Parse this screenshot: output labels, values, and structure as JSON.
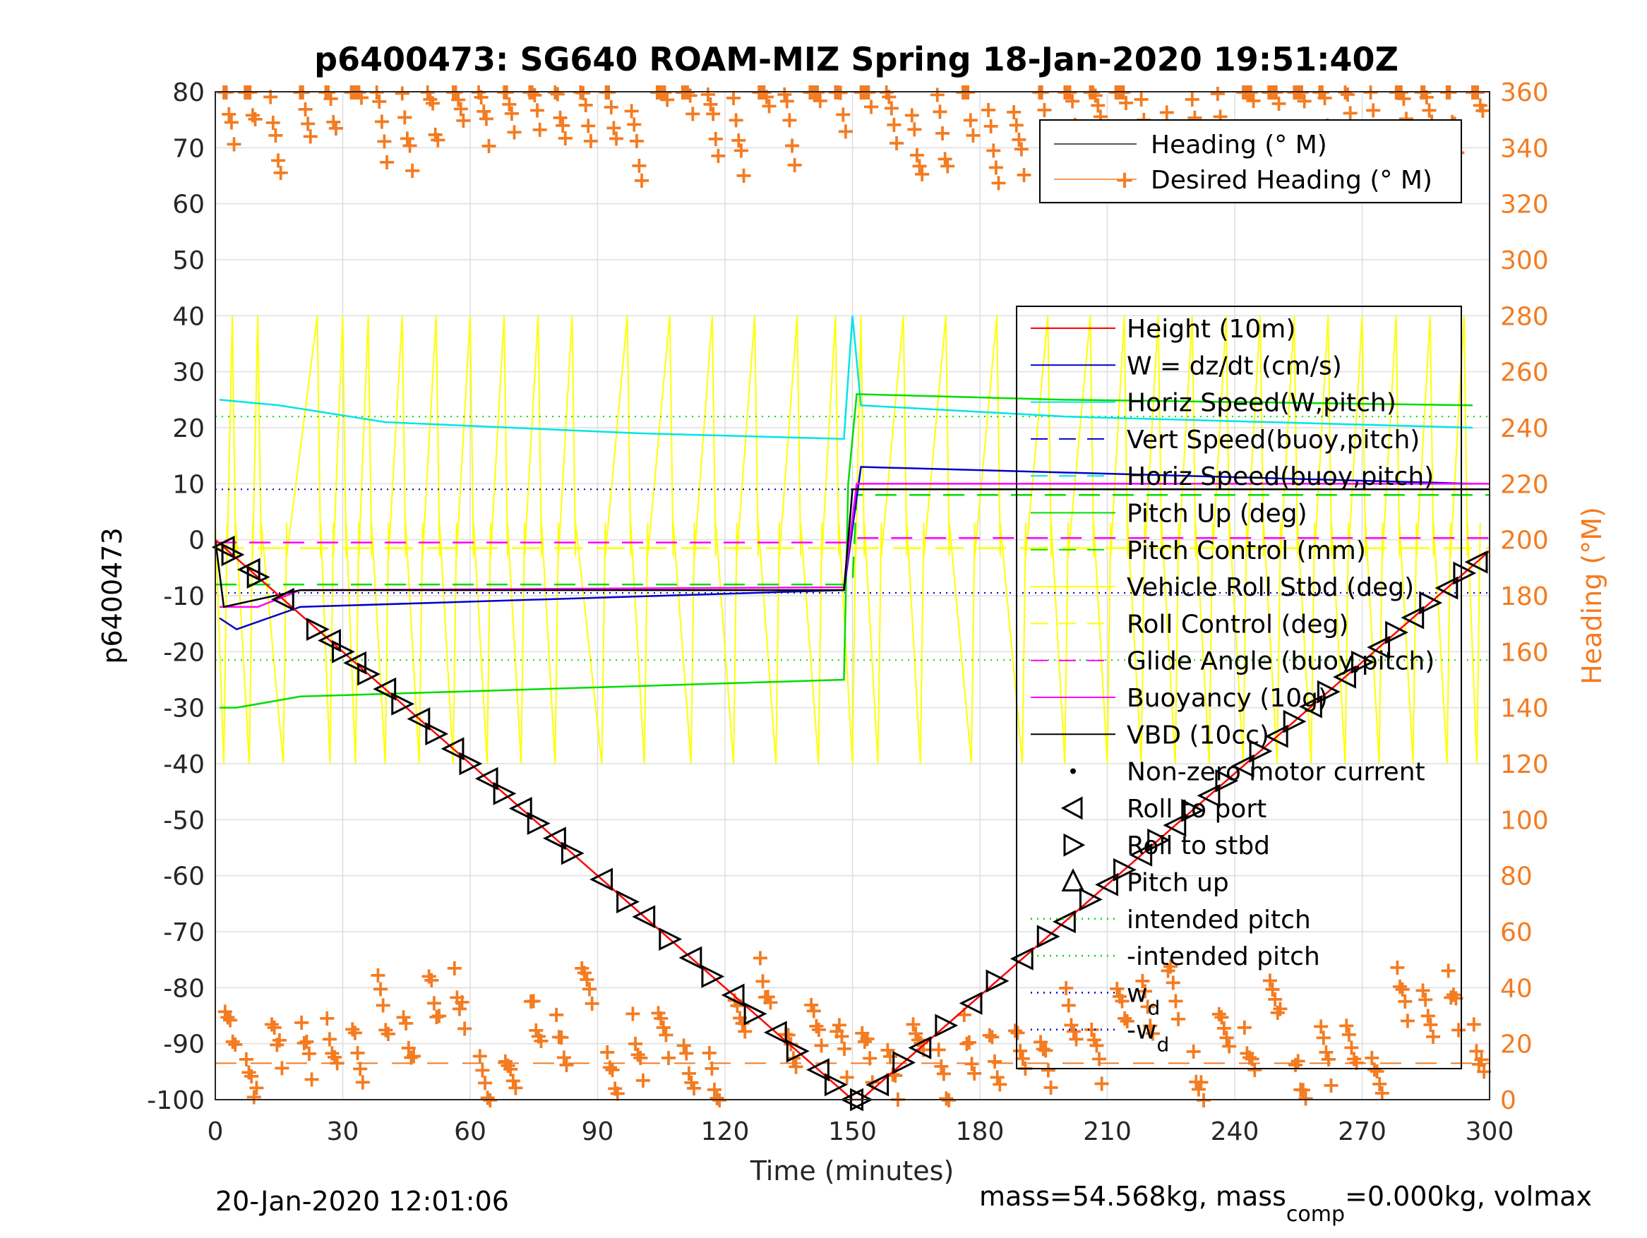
{
  "chart_data": {
    "type": "line",
    "title": "p6400473: SG640 ROAM-MIZ Spring 18-Jan-2020 19:51:40Z",
    "xlabel": "Time (minutes)",
    "ylabel_left": "p6400473",
    "ylabel_right": "Heading (°M)",
    "xlim": [
      0,
      300
    ],
    "ylim_left": [
      -100,
      80
    ],
    "ylim_right": [
      0,
      360
    ],
    "xticks": [
      "0",
      "30",
      "60",
      "90",
      "120",
      "150",
      "180",
      "210",
      "240",
      "270",
      "300"
    ],
    "yticks_left": [
      "80",
      "70",
      "60",
      "50",
      "40",
      "30",
      "20",
      "10",
      "0",
      "-10",
      "-20",
      "-30",
      "-40",
      "-50",
      "-60",
      "-70",
      "-80",
      "-90",
      "-100"
    ],
    "yticks_right": [
      "360",
      "340",
      "320",
      "300",
      "280",
      "260",
      "240",
      "220",
      "200",
      "180",
      "160",
      "140",
      "120",
      "100",
      "80",
      "60",
      "40",
      "20",
      "0"
    ],
    "grid": true,
    "footer_left": "20-Jan-2020 12:01:06",
    "footer_right": "mass=54.568kg, mass",
    "footer_right_sub": "comp",
    "footer_right_tail": "=0.000kg, volmax",
    "heading_legend": [
      {
        "label": "Heading (° M)",
        "color": "#222222"
      },
      {
        "label": "Desired Heading (° M)",
        "color": "#f47b20"
      }
    ],
    "legend": [
      {
        "label": "Height (10m)",
        "color": "#ff0000",
        "style": "solid"
      },
      {
        "label": "W = dz/dt (cm/s)",
        "color": "#0000cc",
        "style": "solid"
      },
      {
        "label": "Horiz Speed(W,pitch)",
        "color": "#00e5e5",
        "style": "solid"
      },
      {
        "label": "Vert Speed(buoy,pitch)",
        "color": "#0000cc",
        "style": "dashed"
      },
      {
        "label": "Horiz Speed(buoy,pitch)",
        "color": "#00e5e5",
        "style": "dashed"
      },
      {
        "label": "Pitch Up (deg)",
        "color": "#00dd00",
        "style": "solid"
      },
      {
        "label": "Pitch Control (mm)",
        "color": "#00dd00",
        "style": "dashed"
      },
      {
        "label": "Vehicle Roll Stbd (deg)",
        "color": "#ffff00",
        "style": "solid"
      },
      {
        "label": "Roll Control (deg)",
        "color": "#ffff00",
        "style": "dashed"
      },
      {
        "label": "Glide Angle (buoy,pitch)",
        "color": "#ff00ff",
        "style": "dashed"
      },
      {
        "label": "Buoyancy (10g)",
        "color": "#ff00ff",
        "style": "solid"
      },
      {
        "label": "VBD (10cc)",
        "color": "#000000",
        "style": "solid"
      },
      {
        "label": "Non-zero motor current",
        "color": "#000000",
        "style": "dot"
      },
      {
        "label": "Roll to port",
        "color": "#000000",
        "style": "tri-left"
      },
      {
        "label": "Roll to stbd",
        "color": "#000000",
        "style": "tri-right"
      },
      {
        "label": "Pitch up",
        "color": "#000000",
        "style": "tri-up"
      },
      {
        "label": "intended pitch",
        "color": "#00dd00",
        "style": "dotted"
      },
      {
        "label": "-intended pitch",
        "color": "#00dd00",
        "style": "dotted"
      },
      {
        "label": "w",
        "sub": "d",
        "color": "#0000cc",
        "style": "dotted"
      },
      {
        "label": "-w",
        "sub": "d",
        "color": "#0000cc",
        "style": "dotted"
      }
    ],
    "reference_lines": {
      "intended_pitch": 22,
      "neg_intended_pitch": -21.5,
      "w_d": 9,
      "neg_w_d": -9.5
    },
    "series": {
      "depth": {
        "x": [
          0,
          150,
          152,
          300
        ],
        "y": [
          0,
          -100,
          -100,
          -2
        ]
      },
      "vbd": {
        "x": [
          0,
          2,
          20,
          148,
          150,
          300
        ],
        "y": [
          0,
          -12,
          -9,
          -9,
          9,
          9
        ]
      },
      "w": {
        "x": [
          1,
          5,
          20,
          148,
          152,
          200,
          296
        ],
        "y": [
          -14,
          -16,
          -12,
          -9,
          13,
          12,
          10
        ]
      },
      "buoyancy": {
        "x": [
          1,
          10,
          20,
          148,
          151,
          300
        ],
        "y": [
          -12,
          -12,
          -9,
          -8.5,
          10,
          10
        ]
      },
      "horiz_speed": {
        "x": [
          1,
          15,
          40,
          100,
          148,
          150,
          152,
          200,
          296
        ],
        "y": [
          25,
          24,
          21,
          19,
          18,
          40,
          24,
          22,
          20
        ]
      },
      "pitch_up": {
        "x": [
          1,
          5,
          20,
          148,
          149,
          151,
          200,
          296
        ],
        "y": [
          -30,
          -30,
          -28,
          -25,
          10,
          26,
          25,
          24
        ]
      },
      "glide_angle": {
        "x": [
          0,
          150,
          151,
          300
        ],
        "y": [
          -0.5,
          -0.5,
          0.3,
          0.3
        ]
      },
      "heading_clusters_minutes": [
        2,
        7,
        13,
        20,
        26,
        32,
        38,
        44,
        50,
        56,
        62,
        68,
        74,
        80,
        86,
        92,
        98,
        104,
        110,
        116,
        122,
        128,
        134,
        140,
        146,
        152,
        158,
        164,
        170,
        176,
        182,
        188,
        194,
        200,
        206,
        212,
        218,
        224,
        230,
        236,
        242,
        248,
        254,
        260,
        266,
        272,
        278,
        284,
        290,
        296
      ],
      "roll_markers_minutes": [
        2,
        4,
        8,
        10,
        16,
        24,
        27,
        30,
        33,
        36,
        40,
        44,
        48,
        52,
        56,
        60,
        64,
        68,
        72,
        76,
        80,
        84,
        91,
        97,
        101,
        107,
        112,
        117,
        122,
        127,
        132,
        137,
        142,
        146,
        150,
        152,
        156,
        162,
        166,
        172,
        178,
        184,
        190,
        196,
        200,
        206,
        210,
        214,
        218,
        222,
        226,
        230,
        234,
        238,
        242,
        246,
        250,
        254,
        258,
        262,
        266,
        270,
        274,
        278,
        282,
        286,
        290,
        294,
        297
      ]
    }
  }
}
